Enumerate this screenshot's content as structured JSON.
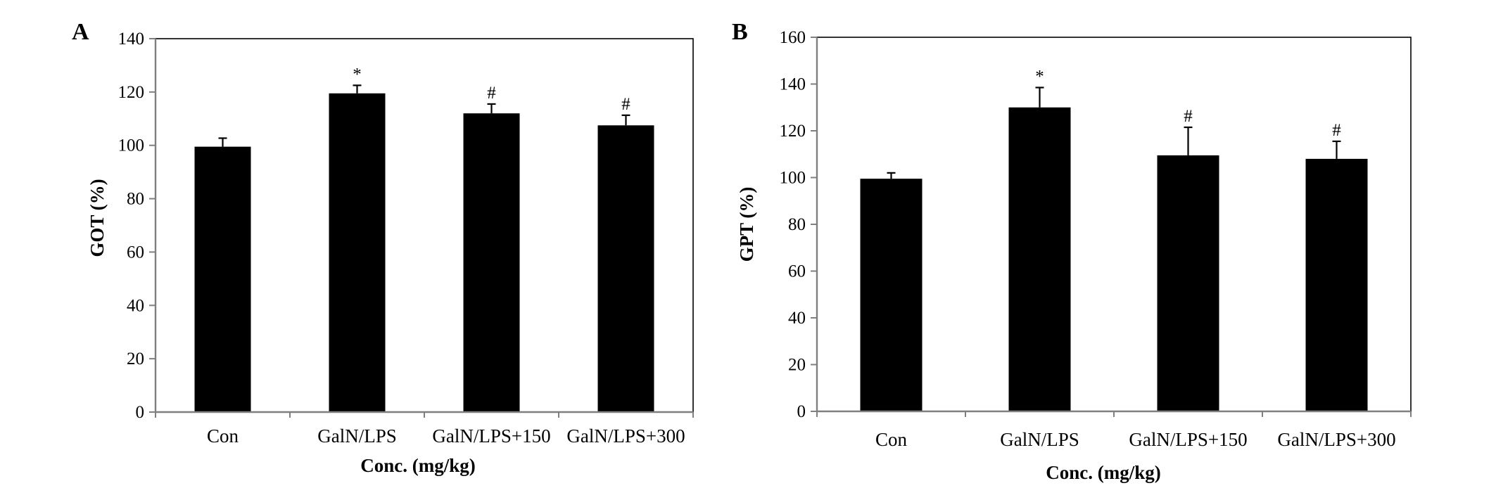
{
  "chart_data": [
    {
      "type": "bar",
      "panel": "A",
      "categories": [
        "Con",
        "GalN/LPS",
        "GalN/LPS+150",
        "GalN/LPS+300"
      ],
      "values": [
        99.5,
        119.5,
        112,
        107.5
      ],
      "errors": [
        3.2,
        3.0,
        3.5,
        3.8
      ],
      "significance": [
        "",
        "*",
        "#",
        "#"
      ],
      "title": "",
      "xlabel": "Conc. (mg/kg)",
      "ylabel": "GOT (%)",
      "ylim": [
        0,
        140
      ],
      "yticks": [
        0,
        20,
        40,
        60,
        80,
        100,
        120,
        140
      ],
      "bar_color": "#000000",
      "grid": false,
      "legend": "none"
    },
    {
      "type": "bar",
      "panel": "B",
      "categories": [
        "Con",
        "GalN/LPS",
        "GalN/LPS+150",
        "GalN/LPS+300"
      ],
      "values": [
        99.5,
        130,
        109.5,
        108
      ],
      "errors": [
        2.5,
        8.5,
        12,
        7.5
      ],
      "significance": [
        "",
        "*",
        "#",
        "#"
      ],
      "title": "",
      "xlabel": "Conc. (mg/kg)",
      "ylabel": "GPT (%)",
      "ylim": [
        0,
        160
      ],
      "yticks": [
        0,
        20,
        40,
        60,
        80,
        100,
        120,
        140,
        160
      ],
      "bar_color": "#000000",
      "grid": false,
      "legend": "none"
    }
  ]
}
